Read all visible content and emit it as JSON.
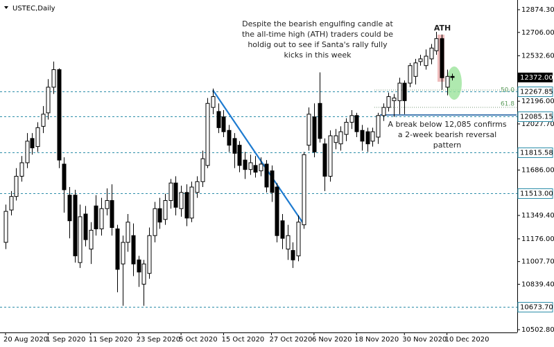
{
  "chart_data": {
    "type": "candlestick",
    "title": "USTEC,Daily",
    "categories": [
      "20 Aug 2020",
      null,
      null,
      null,
      null,
      null,
      null,
      null,
      "1 Sep 2020",
      null,
      null,
      null,
      null,
      null,
      null,
      null,
      "11 Sep 2020",
      null,
      null,
      null,
      null,
      null,
      null,
      null,
      null,
      "23 Sep 2020",
      null,
      null,
      null,
      null,
      null,
      null,
      null,
      "5 Oct 2020",
      null,
      null,
      null,
      null,
      null,
      null,
      null,
      "15 Oct 2020",
      null,
      null,
      null,
      null,
      null,
      null,
      null,
      null,
      "27 Oct 2020",
      null,
      null,
      null,
      null,
      null,
      null,
      null,
      "6 Nov 2020",
      null,
      null,
      null,
      null,
      null,
      null,
      null,
      "18 Nov 2020",
      null,
      null,
      null,
      null,
      null,
      null,
      null,
      null,
      "30 Nov 2020",
      null,
      null,
      null,
      null,
      null,
      null,
      null,
      "10 Dec 2020",
      null
    ],
    "open": [
      11150,
      11390,
      11490,
      11640,
      11740,
      11920,
      11860,
      12010,
      12110,
      12300,
      12430,
      11730,
      11500,
      11500,
      11000,
      11360,
      11100,
      11420,
      11250,
      11400,
      11460,
      11250,
      10990,
      11150,
      11200,
      11020,
      10840,
      10920,
      11200,
      11400,
      11320,
      11460,
      11590,
      11400,
      11520,
      11330,
      11520,
      11600,
      11720,
      12150,
      12120,
      12080,
      11980,
      11920,
      11870,
      11760,
      11690,
      11720,
      11680,
      11730,
      11680,
      11560,
      11310,
      11100,
      11090,
      11050,
      11280,
      11870,
      12080,
      12180,
      11880,
      11640,
      11890,
      11880,
      11950,
      12040,
      12090,
      11980,
      11970,
      11900,
      11930,
      12090,
      12150,
      12200,
      12200,
      12330,
      12330,
      12380,
      12490,
      12460,
      12510,
      12570,
      12660,
      12300,
      12380
    ],
    "high": [
      11430,
      11530,
      11700,
      11790,
      11960,
      11960,
      12040,
      12160,
      12360,
      12490,
      12440,
      11780,
      11560,
      11540,
      11430,
      11420,
      11300,
      11500,
      11480,
      11550,
      11580,
      11280,
      11200,
      11360,
      11290,
      11050,
      11020,
      11260,
      11450,
      11480,
      11510,
      11620,
      11640,
      11570,
      11580,
      11600,
      11640,
      11830,
      12220,
      12290,
      12180,
      12130,
      12020,
      11960,
      11900,
      11820,
      11800,
      11790,
      11780,
      11760,
      11720,
      11590,
      11360,
      11280,
      11150,
      11350,
      11820,
      12150,
      12180,
      12410,
      11920,
      11980,
      11990,
      12010,
      12070,
      12130,
      12110,
      12020,
      12000,
      12000,
      12110,
      12180,
      12260,
      12250,
      12370,
      12350,
      12480,
      12510,
      12540,
      12580,
      12620,
      12710,
      12690,
      12430,
      12400
    ],
    "low": [
      11100,
      11350,
      11460,
      11600,
      11700,
      11800,
      11820,
      11960,
      12060,
      12250,
      11700,
      11370,
      11180,
      11000,
      10960,
      11120,
      10990,
      11200,
      11200,
      11350,
      11200,
      10780,
      10680,
      11080,
      10900,
      10820,
      10680,
      10880,
      11150,
      11250,
      11280,
      11400,
      11350,
      11340,
      11270,
      11300,
      11480,
      11560,
      11700,
      12100,
      11960,
      11930,
      11820,
      11700,
      11670,
      11620,
      11650,
      11630,
      11640,
      11520,
      11450,
      11150,
      11100,
      11020,
      10960,
      11010,
      11250,
      11830,
      11780,
      11890,
      11530,
      11600,
      11840,
      11830,
      11900,
      11990,
      11930,
      11830,
      11820,
      11860,
      11880,
      12050,
      12120,
      12080,
      12100,
      12100,
      12300,
      12320,
      12460,
      12430,
      12470,
      12540,
      12280,
      12240,
      12350
    ],
    "close": [
      11380,
      11490,
      11640,
      11740,
      11900,
      11850,
      12000,
      12100,
      12300,
      12430,
      11760,
      11540,
      11310,
      11050,
      11340,
      11170,
      11240,
      11250,
      11400,
      11460,
      11260,
      10950,
      11150,
      11300,
      10990,
      10930,
      10990,
      11200,
      11400,
      11300,
      11460,
      11590,
      11410,
      11520,
      11330,
      11560,
      11600,
      11770,
      12180,
      12230,
      12000,
      11970,
      11870,
      11810,
      11720,
      11690,
      11740,
      11670,
      11730,
      11560,
      11520,
      11200,
      11180,
      11200,
      11020,
      11300,
      11800,
      12100,
      11820,
      11920,
      11640,
      11940,
      11940,
      11970,
      12040,
      12090,
      11970,
      11900,
      11880,
      11970,
      12090,
      12150,
      12230,
      12220,
      12330,
      12200,
      12460,
      12480,
      12510,
      12530,
      12590,
      12660,
      12370,
      12380,
      12372
    ],
    "ylim": [
      10502.8,
      12874.3
    ],
    "yticks": [
      {
        "value": 10502.8,
        "label": "10502.80"
      },
      {
        "value": 10839.4,
        "label": "10839.40"
      },
      {
        "value": 11007.7,
        "label": "11007.70"
      },
      {
        "value": 11176,
        "label": "11176.00"
      },
      {
        "value": 11349.4,
        "label": "11349.40"
      },
      {
        "value": 11686,
        "label": "11686.00"
      },
      {
        "value": 12027.7,
        "label": "12027.70"
      },
      {
        "value": 12196,
        "label": "12196.00"
      },
      {
        "value": 12532.6,
        "label": "12532.60"
      },
      {
        "value": 12706,
        "label": "12706.00"
      },
      {
        "value": 12874.3,
        "label": "12874.30"
      }
    ],
    "levels": [
      {
        "value": 12267.85,
        "label": "12267.85"
      },
      {
        "value": 12085.15,
        "label": "12085.15"
      },
      {
        "value": 11815.58,
        "label": "11815.58"
      },
      {
        "value": 11513,
        "label": "11513.00"
      },
      {
        "value": 10673.7,
        "label": "10673.70"
      }
    ],
    "last_price": {
      "value": 12372,
      "label": "12372.00"
    },
    "annotations": {
      "note": [
        "Despite the bearish engulfing candle at",
        "the all-time high (ATH) traders could be",
        "holdig out to see if Santa's rally fully",
        "kicks in this week"
      ],
      "ath": "ATH",
      "break_note": [
        "A break below 12,085 confirms",
        "a 2-week bearish reversal",
        "pattern"
      ],
      "fib": [
        "50.0",
        "61.8"
      ]
    }
  }
}
